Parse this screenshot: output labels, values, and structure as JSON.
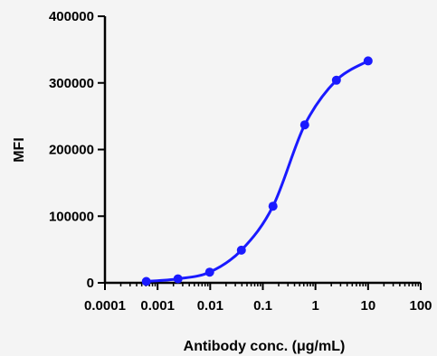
{
  "chart_data": {
    "type": "scatter",
    "title": "",
    "xlabel": "Antibody conc. (μg/mL)",
    "ylabel": "MFI",
    "x_scale": "log",
    "xlim": [
      0.0001,
      100
    ],
    "ylim": [
      0,
      400000
    ],
    "x_tick_labels": [
      "0.0001",
      "0.001",
      "0.01",
      "0.1",
      "1",
      "10",
      "100"
    ],
    "x_tick_values": [
      0.0001,
      0.001,
      0.01,
      0.1,
      1,
      10,
      100
    ],
    "y_tick_labels": [
      "0",
      "100000",
      "200000",
      "300000",
      "400000"
    ],
    "y_tick_values": [
      0,
      100000,
      200000,
      300000,
      400000
    ],
    "grid": false,
    "legend": "none",
    "color": "#1a1aff",
    "series": [
      {
        "x": [
          0.00061,
          0.00244,
          0.00977,
          0.0391,
          0.156,
          0.625,
          2.5,
          10
        ],
        "y": [
          2000,
          6000,
          16000,
          49000,
          115000,
          237000,
          304000,
          333000
        ],
        "fit": "four-parameter-logistic"
      }
    ]
  }
}
